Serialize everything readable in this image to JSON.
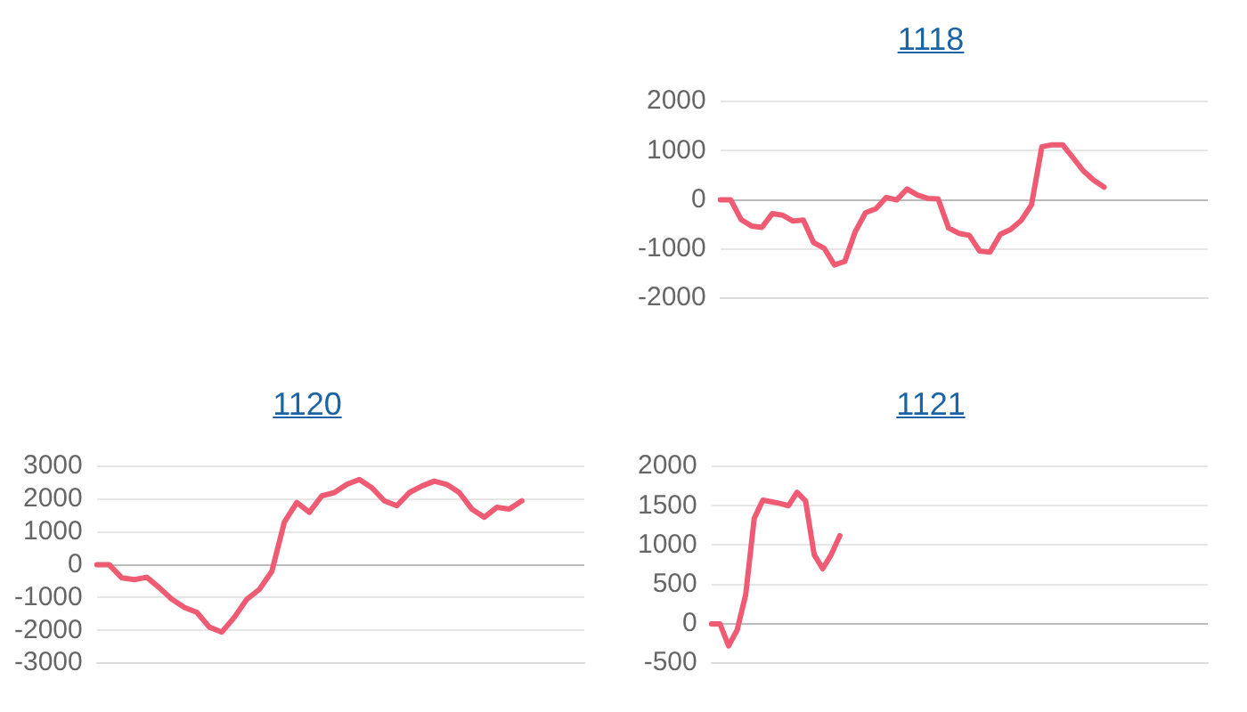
{
  "chart_data": [
    {
      "type": "line",
      "title": "1118",
      "categories": [
        null,
        null,
        null,
        null,
        null,
        null,
        null,
        null,
        null,
        null,
        null,
        null,
        null,
        null,
        null,
        null,
        null,
        null,
        null,
        null,
        null,
        null,
        null,
        null,
        null,
        null,
        null,
        null,
        null,
        null,
        null,
        null,
        null,
        null,
        null,
        null,
        null,
        null,
        null,
        null,
        null,
        null,
        null,
        null,
        null,
        null,
        null,
        null
      ],
      "series": [
        {
          "color": "#ef5b73",
          "values": [
            0,
            0,
            -400,
            -530,
            -560,
            -280,
            -310,
            -430,
            -410,
            -870,
            -980,
            -1320,
            -1250,
            -650,
            -260,
            -180,
            50,
            0,
            220,
            100,
            30,
            20,
            -570,
            -680,
            -720,
            -1040,
            -1060,
            -700,
            -600,
            -420,
            -100,
            1080,
            1120,
            1120,
            860,
            590,
            400,
            260,
            null,
            null,
            null,
            null,
            null,
            null,
            null,
            null,
            null,
            null
          ]
        }
      ],
      "ylim": [
        -2000,
        2000
      ],
      "yticks": [
        -2000,
        -1000,
        0,
        1000,
        2000
      ],
      "grid": "y",
      "marker": "none"
    },
    {
      "type": "line",
      "title": "1120",
      "categories": [
        null,
        null,
        null,
        null,
        null,
        null,
        null,
        null,
        null,
        null,
        null,
        null,
        null,
        null,
        null,
        null,
        null,
        null,
        null,
        null,
        null,
        null,
        null,
        null,
        null,
        null,
        null,
        null,
        null,
        null,
        null,
        null,
        null,
        null,
        null,
        null,
        null,
        null,
        null,
        null
      ],
      "series": [
        {
          "color": "#ef5b73",
          "values": [
            0,
            0,
            -400,
            -450,
            -380,
            -700,
            -1050,
            -1300,
            -1450,
            -1900,
            -2050,
            -1600,
            -1050,
            -750,
            -200,
            1300,
            1900,
            1600,
            2100,
            2200,
            2450,
            2600,
            2350,
            1950,
            1800,
            2200,
            2400,
            2550,
            2450,
            2200,
            1700,
            1450,
            1750,
            1700,
            1950,
            null,
            null,
            null,
            null,
            null
          ]
        }
      ],
      "ylim": [
        -3000,
        3000
      ],
      "yticks": [
        -3000,
        -2000,
        -1000,
        0,
        1000,
        2000,
        3000
      ],
      "grid": "y",
      "marker": "none"
    },
    {
      "type": "line",
      "title": "1121",
      "categories": [
        null,
        null,
        null,
        null,
        null,
        null,
        null,
        null,
        null,
        null,
        null,
        null,
        null,
        null,
        null,
        null,
        null,
        null,
        null,
        null,
        null,
        null,
        null,
        null,
        null,
        null,
        null,
        null,
        null,
        null,
        null,
        null,
        null,
        null,
        null,
        null,
        null,
        null,
        null,
        null,
        null,
        null,
        null,
        null,
        null,
        null,
        null,
        null,
        null,
        null,
        null,
        null,
        null,
        null,
        null,
        null,
        null,
        null,
        null
      ],
      "series": [
        {
          "color": "#ef5b73",
          "values": [
            0,
            0,
            -280,
            -80,
            370,
            1340,
            1570,
            1550,
            1530,
            1500,
            1670,
            1560,
            880,
            700,
            880,
            1120,
            null,
            null,
            null,
            null,
            null,
            null,
            null,
            null,
            null,
            null,
            null,
            null,
            null,
            null,
            null,
            null,
            null,
            null,
            null,
            null,
            null,
            null,
            null,
            null,
            null,
            null,
            null,
            null,
            null,
            null,
            null,
            null,
            null,
            null,
            null,
            null,
            null,
            null,
            null,
            null,
            null,
            null,
            null
          ]
        }
      ],
      "ylim": [
        -500,
        2000
      ],
      "yticks": [
        -500,
        0,
        500,
        1000,
        1500,
        2000
      ],
      "grid": "y",
      "marker": "none"
    }
  ]
}
